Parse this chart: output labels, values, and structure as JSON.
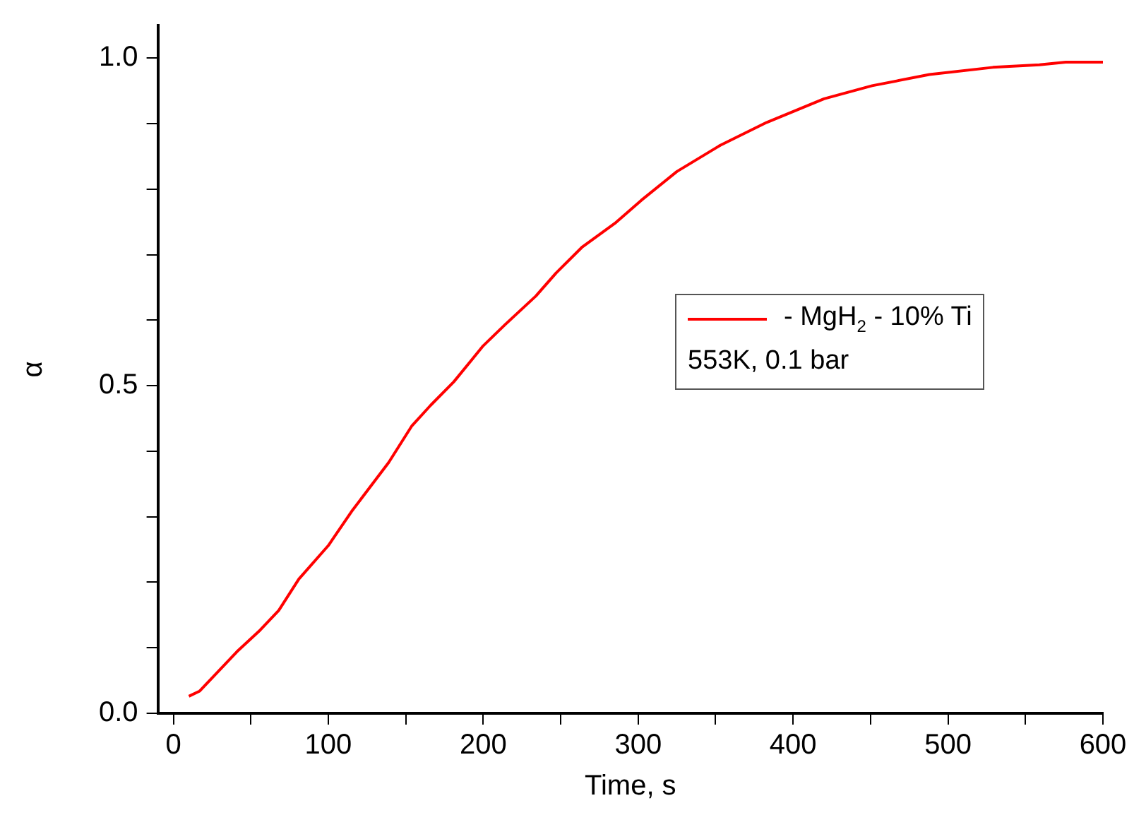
{
  "chart_data": {
    "type": "line",
    "xlabel": "Time, s",
    "ylabel": "α",
    "xlim": [
      -10,
      600
    ],
    "ylim": [
      0,
      1.05
    ],
    "xticks": [
      0,
      {
        "value": 50,
        "label": null
      },
      100,
      {
        "value": 150,
        "label": null
      },
      200,
      {
        "value": 250,
        "label": null
      },
      300,
      {
        "value": 350,
        "label": null
      },
      400,
      {
        "value": 450,
        "label": null
      },
      500,
      {
        "value": 550,
        "label": null
      },
      600
    ],
    "yticks": [
      {
        "value": 0,
        "label": "0.0"
      },
      {
        "value": 0.1,
        "label": null
      },
      {
        "value": 0.2,
        "label": null
      },
      {
        "value": 0.3,
        "label": null
      },
      {
        "value": 0.4,
        "label": null
      },
      {
        "value": 0.5,
        "label": "0.5"
      },
      {
        "value": 0.6,
        "label": null
      },
      {
        "value": 0.7,
        "label": null
      },
      {
        "value": 0.8,
        "label": null
      },
      {
        "value": 0.9,
        "label": null
      },
      {
        "value": 1.0,
        "label": "1.0"
      }
    ],
    "grid": false,
    "legend": "right",
    "marker": "none",
    "line_style": "solid",
    "annotations": [
      "553K, 0.1 bar"
    ],
    "series": [
      {
        "name": "- MgH$_{2}$ - 10% Ti",
        "color": "#ff0000",
        "x": [
          10,
          17,
          41,
          56,
          68,
          81,
          100,
          115,
          139,
          154,
          166,
          181,
          200,
          214,
          234,
          247,
          264,
          285,
          302,
          325,
          353,
          383,
          420,
          451,
          488,
          529,
          559,
          576,
          600
        ],
        "values": [
          0.026,
          0.034,
          0.094,
          0.127,
          0.157,
          0.205,
          0.256,
          0.308,
          0.383,
          0.439,
          0.47,
          0.506,
          0.561,
          0.593,
          0.637,
          0.672,
          0.712,
          0.748,
          0.783,
          0.827,
          0.867,
          0.902,
          0.938,
          0.958,
          0.975,
          0.986,
          0.99,
          0.994,
          0.994
        ]
      }
    ]
  }
}
